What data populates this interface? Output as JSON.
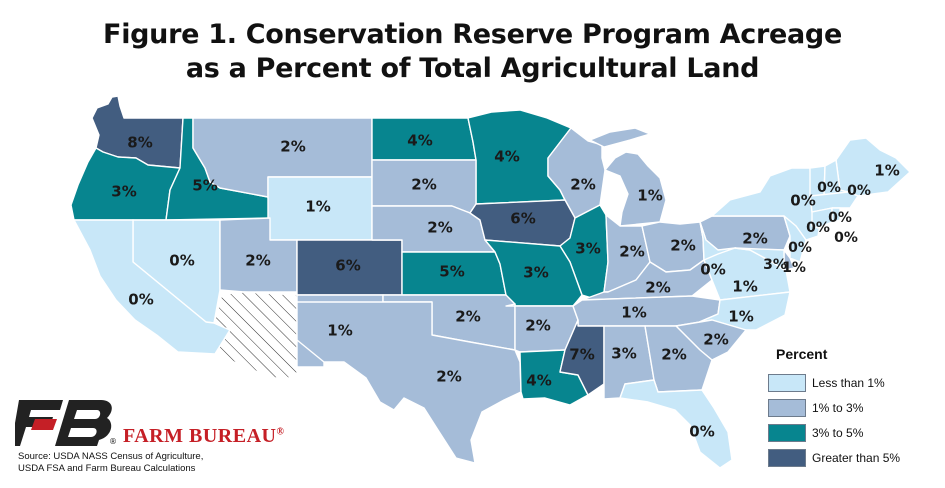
{
  "title_line1": "Figure 1. Conservation Reserve Program Acreage",
  "title_line2": "as a Percent of Total Agricultural Land",
  "colors": {
    "less_than_1": "#c8e7f8",
    "1_to_3": "#a5bcd8",
    "3_to_5": "#07858f",
    "greater_than_5": "#425d80",
    "no_data": "#ffffff",
    "brand_red": "#c51f26"
  },
  "legend": {
    "title": "Percent",
    "items": [
      {
        "key": "less_than_1",
        "label": "Less than 1%"
      },
      {
        "key": "1_to_3",
        "label": "1% to 3%"
      },
      {
        "key": "3_to_5",
        "label": "3% to 5%"
      },
      {
        "key": "greater_than_5",
        "label": "Greater than 5%"
      }
    ]
  },
  "states": [
    {
      "code": "WA",
      "value": "8%",
      "category": "greater_than_5"
    },
    {
      "code": "OR",
      "value": "3%",
      "category": "3_to_5"
    },
    {
      "code": "ID",
      "value": "5%",
      "category": "3_to_5"
    },
    {
      "code": "MT",
      "value": "2%",
      "category": "1_to_3"
    },
    {
      "code": "ND",
      "value": "4%",
      "category": "3_to_5"
    },
    {
      "code": "MN",
      "value": "4%",
      "category": "3_to_5"
    },
    {
      "code": "WY",
      "value": "1%",
      "category": "less_than_1"
    },
    {
      "code": "SD",
      "value": "2%",
      "category": "1_to_3"
    },
    {
      "code": "WI",
      "value": "2%",
      "category": "1_to_3"
    },
    {
      "code": "MI",
      "value": "1%",
      "category": "1_to_3"
    },
    {
      "code": "NV",
      "value": "0%",
      "category": "less_than_1"
    },
    {
      "code": "CA",
      "value": "0%",
      "category": "less_than_1"
    },
    {
      "code": "UT",
      "value": "2%",
      "category": "1_to_3"
    },
    {
      "code": "CO",
      "value": "6%",
      "category": "greater_than_5"
    },
    {
      "code": "NE",
      "value": "2%",
      "category": "1_to_3"
    },
    {
      "code": "IA",
      "value": "6%",
      "category": "greater_than_5"
    },
    {
      "code": "IL",
      "value": "3%",
      "category": "3_to_5"
    },
    {
      "code": "IN",
      "value": "2%",
      "category": "1_to_3"
    },
    {
      "code": "OH",
      "value": "2%",
      "category": "1_to_3"
    },
    {
      "code": "PA",
      "value": "2%",
      "category": "1_to_3"
    },
    {
      "code": "NY",
      "value": "0%",
      "category": "less_than_1"
    },
    {
      "code": "KS",
      "value": "5%",
      "category": "3_to_5"
    },
    {
      "code": "MO",
      "value": "3%",
      "category": "3_to_5"
    },
    {
      "code": "KY",
      "value": "2%",
      "category": "1_to_3"
    },
    {
      "code": "WV",
      "value": "0%",
      "category": "less_than_1"
    },
    {
      "code": "VA",
      "value": "1%",
      "category": "less_than_1"
    },
    {
      "code": "AZ",
      "value": "",
      "category": "no_data"
    },
    {
      "code": "NM",
      "value": "1%",
      "category": "1_to_3"
    },
    {
      "code": "OK",
      "value": "2%",
      "category": "1_to_3"
    },
    {
      "code": "AR",
      "value": "2%",
      "category": "1_to_3"
    },
    {
      "code": "TN",
      "value": "1%",
      "category": "1_to_3"
    },
    {
      "code": "NC",
      "value": "1%",
      "category": "less_than_1"
    },
    {
      "code": "SC",
      "value": "2%",
      "category": "1_to_3"
    },
    {
      "code": "TX",
      "value": "2%",
      "category": "1_to_3"
    },
    {
      "code": "LA",
      "value": "4%",
      "category": "3_to_5"
    },
    {
      "code": "MS",
      "value": "7%",
      "category": "greater_than_5"
    },
    {
      "code": "AL",
      "value": "3%",
      "category": "1_to_3"
    },
    {
      "code": "GA",
      "value": "2%",
      "category": "1_to_3"
    },
    {
      "code": "FL",
      "value": "0%",
      "category": "less_than_1"
    },
    {
      "code": "ME",
      "value": "1%",
      "category": "less_than_1"
    },
    {
      "code": "VT",
      "value": "0%",
      "category": "less_than_1"
    },
    {
      "code": "NH",
      "value": "0%",
      "category": "less_than_1"
    },
    {
      "code": "MA",
      "value": "0%",
      "category": "less_than_1"
    },
    {
      "code": "CT",
      "value": "0%",
      "category": "less_than_1"
    },
    {
      "code": "RI",
      "value": "0%",
      "category": "less_than_1"
    },
    {
      "code": "NJ",
      "value": "0%",
      "category": "less_than_1"
    },
    {
      "code": "DE",
      "value": "3%",
      "category": "1_to_3"
    },
    {
      "code": "MD",
      "value": "1%",
      "category": "less_than_1"
    }
  ],
  "brand": "FARM BUREAU",
  "brand_mark": "®",
  "source_line1": "Source: USDA NASS Census of Agriculture,",
  "source_line2": "USDA FSA and Farm Bureau Calculations"
}
